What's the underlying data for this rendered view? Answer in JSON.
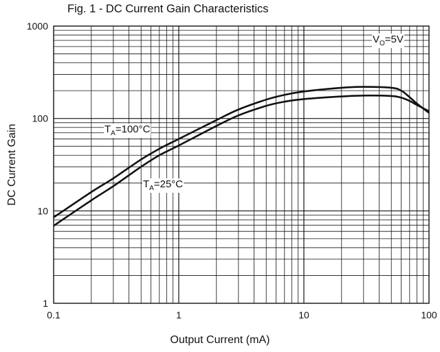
{
  "chart_data": {
    "type": "line",
    "title": "Fig. 1 - DC Current Gain Characteristics",
    "xlabel": "Output Current (mA)",
    "ylabel": "DC Current Gain",
    "xscale": "log",
    "yscale": "log",
    "xlim": [
      0.1,
      100
    ],
    "ylim": [
      1,
      1000
    ],
    "grid": true,
    "x_ticks": [
      "0.1",
      "1",
      "10",
      "100"
    ],
    "y_ticks": [
      "1",
      "10",
      "100",
      "1000"
    ],
    "series": [
      {
        "name": "TA=100°C",
        "x": [
          0.1,
          0.2,
          0.3,
          0.5,
          0.7,
          1,
          2,
          3,
          5,
          7,
          10,
          20,
          30,
          50,
          60,
          70,
          80,
          100
        ],
        "y": [
          8.5,
          16,
          22.5,
          36,
          47,
          60,
          96,
          125,
          160,
          180,
          196,
          215,
          220,
          215,
          200,
          170,
          145,
          115
        ]
      },
      {
        "name": "TA=25°C",
        "x": [
          0.1,
          0.2,
          0.3,
          0.5,
          0.7,
          1,
          2,
          3,
          5,
          7,
          10,
          20,
          30,
          50,
          60,
          70,
          80,
          100
        ],
        "y": [
          6.9,
          13,
          18.5,
          30,
          40,
          51,
          83,
          108,
          137,
          152,
          162,
          173,
          177,
          175,
          168,
          155,
          140,
          120
        ]
      }
    ],
    "annotations": {
      "vo": {
        "main": "V",
        "sub": "O",
        "rest": "=5V"
      },
      "t100": {
        "main": "T",
        "sub": "A",
        "rest": "=100°C"
      },
      "t25": {
        "main": "T",
        "sub": "A",
        "rest": "=25°C"
      }
    }
  }
}
